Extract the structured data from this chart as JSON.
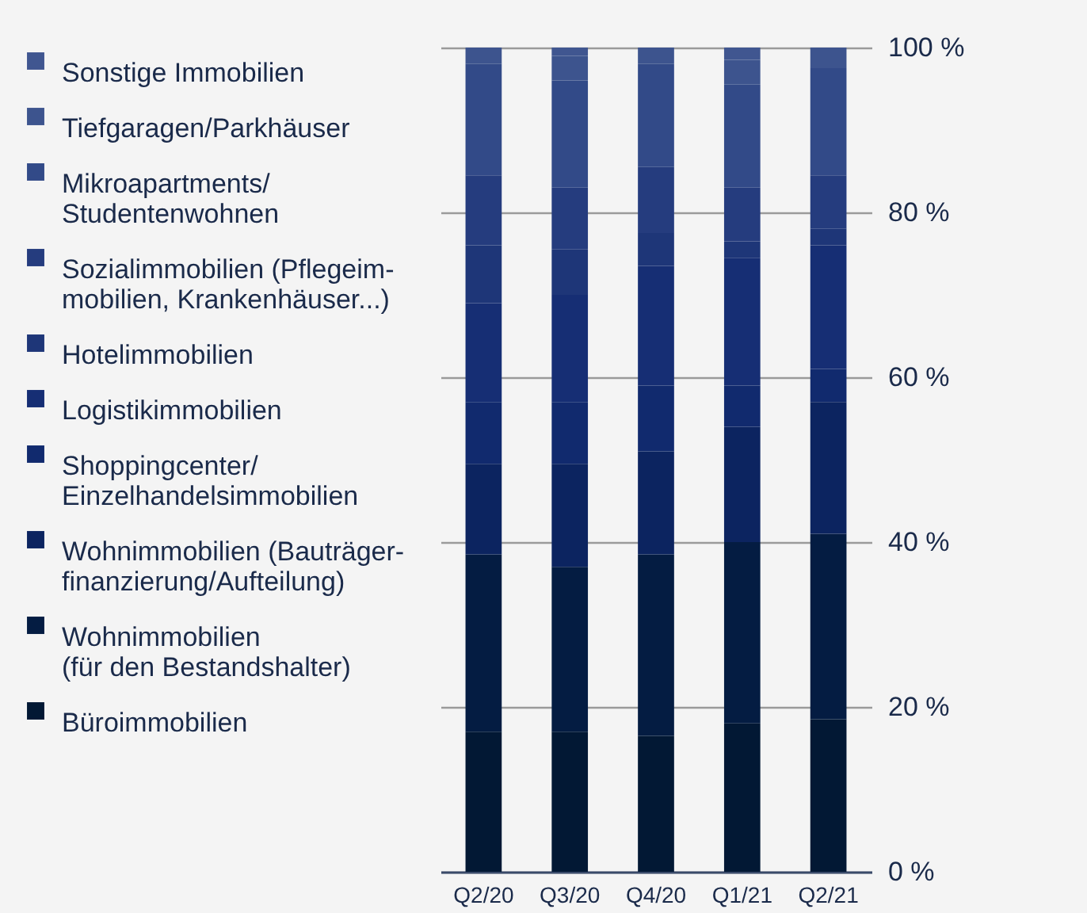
{
  "chart_data": {
    "type": "bar",
    "stacked": true,
    "categories": [
      "Q2/20",
      "Q3/20",
      "Q4/20",
      "Q1/21",
      "Q2/21"
    ],
    "series": [
      {
        "name": "Büroimmobilien",
        "color": "#021834",
        "values": [
          17,
          17,
          16.5,
          18,
          18.5
        ]
      },
      {
        "name": "Wohnimmobilien\n(für den Bestandshalter)",
        "color": "#041c42",
        "values": [
          21.5,
          20,
          22,
          22,
          22.5
        ]
      },
      {
        "name": "Wohnimmobilien (Bauträger-\nfinanzierung/Aufteilung)",
        "color": "#0c2460",
        "values": [
          11,
          12.5,
          12.5,
          14,
          16
        ]
      },
      {
        "name": "Shoppingcenter/\nEinzelhandelsimmobilien",
        "color": "#112a6e",
        "values": [
          7.5,
          7.5,
          8,
          5,
          4
        ]
      },
      {
        "name": "Logistikimmobilien",
        "color": "#162e74",
        "values": [
          12,
          13,
          14.5,
          15.5,
          15
        ]
      },
      {
        "name": "Hotelimmobilien",
        "color": "#1e3678",
        "values": [
          7,
          5.5,
          4,
          2,
          2
        ]
      },
      {
        "name": "Sozialimmobilien (Pflegeim-\nmobilien, Krankenhäuser...)",
        "color": "#253c7e",
        "values": [
          8.5,
          7.5,
          8,
          6.5,
          6.5
        ]
      },
      {
        "name": "Mikroapartments/\nStudentenwohnen",
        "color": "#324a88",
        "values": [
          13.5,
          13,
          12.5,
          12.5,
          13
        ]
      },
      {
        "name": "Tiefgaragen/Parkhäuser",
        "color": "#3d548e",
        "values": [
          2,
          3,
          2,
          3,
          2.5
        ]
      },
      {
        "name": "Sonstige Immobilien",
        "color": "#405690",
        "values": [
          0,
          1,
          0,
          1.5,
          0
        ]
      }
    ],
    "ylim": [
      0,
      100
    ],
    "yticks": [
      {
        "value": 0,
        "label": "0 %"
      },
      {
        "value": 20,
        "label": "20 %"
      },
      {
        "value": 40,
        "label": "40 %"
      },
      {
        "value": 60,
        "label": "60 %"
      },
      {
        "value": 80,
        "label": "80 %"
      },
      {
        "value": 100,
        "label": "100 %"
      }
    ],
    "grid": "y",
    "legend": "left"
  }
}
